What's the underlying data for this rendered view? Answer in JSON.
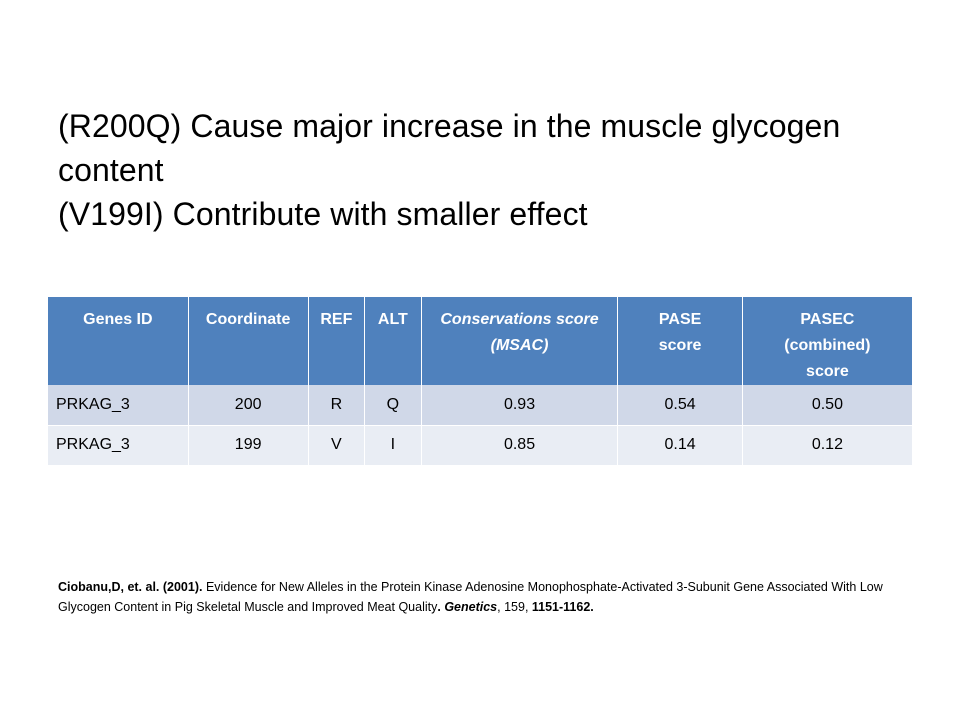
{
  "headline": {
    "line1": "(R200Q) Cause major increase in the muscle glycogen",
    "line2": "content",
    "line3": "(V199I)  Contribute with smaller effect"
  },
  "table": {
    "headers": {
      "genes_id": "Genes ID",
      "coordinate": "Coordinate",
      "ref": "REF",
      "alt": "ALT",
      "conservation_line1": "Conservations score",
      "conservation_line2": "(MSAC)",
      "pase_line1": "PASE",
      "pase_line2": "score",
      "pasec_line1": "PASEC",
      "pasec_line2": "(combined)",
      "pasec_line3": "score"
    },
    "rows": [
      {
        "genes_id": "PRKAG_3",
        "coordinate": "200",
        "ref": "R",
        "alt": "Q",
        "conservation": "0.93",
        "pase": "0.54",
        "pasec": "0.50"
      },
      {
        "genes_id": "PRKAG_3",
        "coordinate": "199",
        "ref": "V",
        "alt": "I",
        "conservation": "0.85",
        "pase": "0.14",
        "pasec": "0.12"
      }
    ]
  },
  "citation": {
    "authors": "Ciobanu,D, et. al. (2001).",
    "title": " Evidence for New Alleles in the Protein Kinase Adenosine Monophosphate-Activated  3-Subunit Gene Associated With Low Glycogen Content in Pig Skeletal Muscle and Improved Meat Quality",
    "period": ".",
    "journal": "Genetics",
    "volume": ", 159, ",
    "pages": "1151-1162."
  },
  "colors": {
    "header_bg": "#4f81bd",
    "row_odd_bg": "#d0d8e8",
    "row_even_bg": "#e9edf4"
  }
}
